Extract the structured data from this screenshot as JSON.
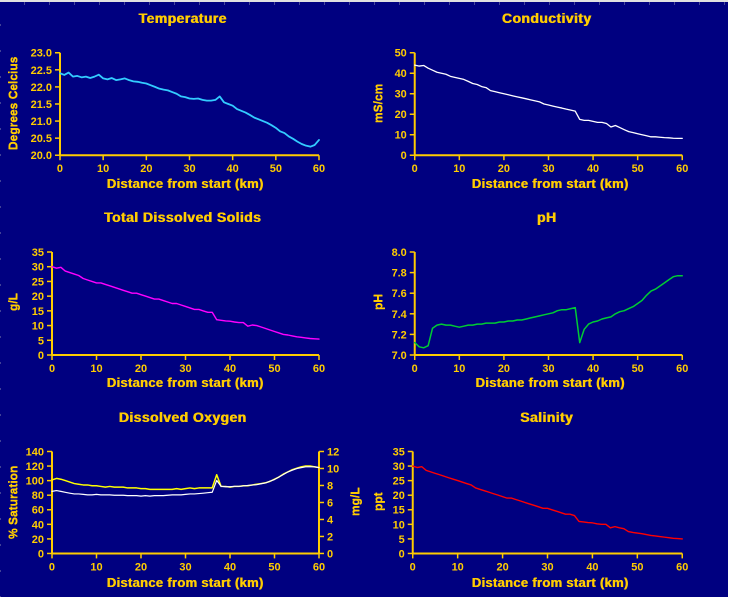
{
  "window": {
    "background": "#000080",
    "axis_color": "#FFCC00",
    "text_color": "#FFCC00"
  },
  "chart_data": [
    {
      "id": "temperature",
      "type": "line",
      "title": "Temperature",
      "xlabel": "Distance from start (km)",
      "ylabel": "Degrees Celcius",
      "xlim": [
        0,
        60
      ],
      "xticks": [
        "0",
        "10",
        "20",
        "30",
        "40",
        "50",
        "60"
      ],
      "ylim": [
        20,
        23
      ],
      "yticks": [
        "20.0",
        "20.5",
        "21.0",
        "21.5",
        "22.0",
        "22.5",
        "23.0"
      ],
      "grid": false,
      "legend": "none",
      "x_start": 0,
      "x_step": 1,
      "series": [
        {
          "name": "Temperature",
          "color": "#33CCFF",
          "width": 1.8,
          "values": [
            22.4,
            22.35,
            22.42,
            22.3,
            22.32,
            22.28,
            22.3,
            22.26,
            22.3,
            22.36,
            22.25,
            22.22,
            22.26,
            22.2,
            22.22,
            22.25,
            22.2,
            22.16,
            22.15,
            22.12,
            22.1,
            22.05,
            22.0,
            21.95,
            21.92,
            21.9,
            21.85,
            21.8,
            21.72,
            21.7,
            21.66,
            21.65,
            21.66,
            21.62,
            21.6,
            21.6,
            21.62,
            21.72,
            21.55,
            21.5,
            21.45,
            21.35,
            21.3,
            21.25,
            21.18,
            21.1,
            21.05,
            21.0,
            20.95,
            20.88,
            20.8,
            20.7,
            20.65,
            20.55,
            20.48,
            20.4,
            20.33,
            20.28,
            20.25,
            20.3,
            20.45
          ]
        }
      ]
    },
    {
      "id": "conductivity",
      "type": "line",
      "title": "Conductivity",
      "xlabel": "Distance from start (km)",
      "ylabel": "mS/cm",
      "xlim": [
        0,
        60
      ],
      "xticks": [
        "0",
        "10",
        "20",
        "30",
        "40",
        "50",
        "60"
      ],
      "ylim": [
        0,
        50
      ],
      "yticks": [
        "0",
        "10",
        "20",
        "30",
        "40",
        "50"
      ],
      "grid": false,
      "legend": "none",
      "x_start": 0,
      "x_step": 1,
      "series": [
        {
          "name": "Conductivity",
          "color": "#FFFFFF",
          "width": 1.3,
          "values": [
            44,
            43.5,
            43.8,
            42.5,
            41.5,
            40.5,
            40,
            39.5,
            38.5,
            38,
            37.5,
            37,
            36,
            35,
            34.5,
            33.5,
            33,
            31.5,
            31,
            30.5,
            30,
            29.5,
            29,
            28.5,
            28,
            27.5,
            27,
            26.5,
            26,
            25,
            24.5,
            24,
            23.5,
            23,
            22.5,
            22,
            21.5,
            17.5,
            17,
            17,
            16.5,
            16,
            16,
            15.5,
            13.8,
            14.5,
            13.5,
            12.5,
            11.5,
            11,
            10.5,
            10,
            9.5,
            9,
            9,
            8.8,
            8.6,
            8.5,
            8.3,
            8.2,
            8.2
          ]
        }
      ]
    },
    {
      "id": "total-dissolved-solids",
      "type": "line",
      "title": "Total Dissolved Solids",
      "xlabel": "Distance from start (km)",
      "ylabel": "g/L",
      "xlim": [
        0,
        60
      ],
      "xticks": [
        "0",
        "10",
        "20",
        "30",
        "40",
        "50",
        "60"
      ],
      "ylim": [
        0,
        35
      ],
      "yticks": [
        "0",
        "5",
        "10",
        "15",
        "20",
        "25",
        "30",
        "35"
      ],
      "grid": false,
      "legend": "none",
      "x_start": 0,
      "x_step": 1,
      "series": [
        {
          "name": "Total Dissolved Solids",
          "color": "#FF00FF",
          "width": 1.4,
          "values": [
            30,
            29.5,
            29.8,
            28.5,
            28,
            27.5,
            27,
            26,
            25.5,
            25,
            24.5,
            24.5,
            24,
            23.5,
            23,
            22.5,
            22,
            21.5,
            21,
            21,
            20.5,
            20,
            19.5,
            19,
            19,
            18.5,
            18,
            17.5,
            17.5,
            17,
            16.5,
            16,
            15.5,
            15.5,
            15,
            14.5,
            14.5,
            12,
            11.8,
            11.6,
            11.5,
            11.2,
            11,
            11,
            9.8,
            10.2,
            10,
            9.5,
            9,
            8.5,
            8,
            7.5,
            7,
            6.8,
            6.5,
            6.2,
            6,
            5.8,
            5.6,
            5.5,
            5.4
          ]
        }
      ]
    },
    {
      "id": "ph",
      "type": "line",
      "title": "pH",
      "xlabel": "Distane from start (km)",
      "ylabel": "pH",
      "xlim": [
        0,
        60
      ],
      "xticks": [
        "0",
        "10",
        "20",
        "30",
        "40",
        "50",
        "60"
      ],
      "ylim": [
        7.0,
        8.0
      ],
      "yticks": [
        "7.0",
        "7.2",
        "7.4",
        "7.6",
        "7.8",
        "8.0"
      ],
      "grid": false,
      "legend": "none",
      "x_start": 0,
      "x_step": 1,
      "series": [
        {
          "name": "pH",
          "color": "#00CC33",
          "width": 1.5,
          "values": [
            7.12,
            7.08,
            7.07,
            7.09,
            7.26,
            7.29,
            7.3,
            7.29,
            7.29,
            7.28,
            7.27,
            7.28,
            7.29,
            7.29,
            7.3,
            7.3,
            7.31,
            7.31,
            7.31,
            7.32,
            7.32,
            7.33,
            7.33,
            7.34,
            7.34,
            7.35,
            7.36,
            7.37,
            7.38,
            7.39,
            7.4,
            7.41,
            7.43,
            7.44,
            7.44,
            7.45,
            7.46,
            7.12,
            7.25,
            7.3,
            7.32,
            7.33,
            7.35,
            7.36,
            7.37,
            7.4,
            7.42,
            7.43,
            7.45,
            7.47,
            7.5,
            7.53,
            7.58,
            7.62,
            7.64,
            7.67,
            7.7,
            7.73,
            7.76,
            7.77,
            7.77
          ]
        }
      ]
    },
    {
      "id": "dissolved-oxygen",
      "type": "line",
      "title": "Dissolved Oxygen",
      "xlabel": "Distance from start (km)",
      "ylabel": "% Saturation",
      "y2label": "mg/L",
      "xlim": [
        0,
        60
      ],
      "xticks": [
        "0",
        "10",
        "20",
        "30",
        "40",
        "50",
        "60"
      ],
      "ylim": [
        0,
        140
      ],
      "yticks": [
        "0",
        "20",
        "40",
        "60",
        "80",
        "100",
        "120",
        "140"
      ],
      "y2lim": [
        0,
        12
      ],
      "y2ticks": [
        "0",
        "2",
        "4",
        "6",
        "8",
        "10",
        "12"
      ],
      "grid": false,
      "legend": "none",
      "x_start": 0,
      "x_step": 1,
      "series": [
        {
          "name": "% Saturation",
          "axis": "left",
          "color": "#FFFF00",
          "width": 1.5,
          "values": [
            101,
            103,
            102,
            100,
            98,
            96,
            95,
            94,
            94,
            93,
            93,
            92,
            91,
            92,
            91,
            91,
            91,
            90,
            90,
            90,
            89,
            89,
            88,
            88,
            88,
            88,
            88,
            88,
            89,
            88,
            89,
            90,
            89,
            90,
            90,
            90,
            90,
            108,
            92,
            92,
            91,
            92,
            92,
            93,
            93,
            94,
            95,
            96,
            97,
            99,
            102,
            105,
            109,
            112,
            115,
            117,
            119,
            120,
            120,
            119,
            118
          ]
        },
        {
          "name": "mg/L",
          "axis": "right",
          "color": "#FFFFFF",
          "width": 1.2,
          "values": [
            7.3,
            7.4,
            7.3,
            7.2,
            7.1,
            7.0,
            7.0,
            6.95,
            6.9,
            6.9,
            6.95,
            6.9,
            6.9,
            6.9,
            6.85,
            6.85,
            6.85,
            6.8,
            6.8,
            6.8,
            6.75,
            6.8,
            6.75,
            6.8,
            6.8,
            6.8,
            6.85,
            6.9,
            6.9,
            6.9,
            6.95,
            7.0,
            7.0,
            7.05,
            7.1,
            7.15,
            7.2,
            8.6,
            7.9,
            7.85,
            7.85,
            7.9,
            7.9,
            7.95,
            8.0,
            8.05,
            8.1,
            8.2,
            8.3,
            8.5,
            8.7,
            9.0,
            9.3,
            9.6,
            9.8,
            10.0,
            10.1,
            10.2,
            10.2,
            10.2,
            10.1
          ]
        }
      ]
    },
    {
      "id": "salinity",
      "type": "line",
      "title": "Salinity",
      "xlabel": "Distance from start (km)",
      "ylabel": "ppt",
      "xlim": [
        0,
        60
      ],
      "xticks": [
        "0",
        "10",
        "20",
        "30",
        "40",
        "50",
        "60"
      ],
      "ylim": [
        0,
        35
      ],
      "yticks": [
        "0",
        "5",
        "10",
        "15",
        "20",
        "25",
        "30",
        "35"
      ],
      "grid": false,
      "legend": "none",
      "x_start": 0,
      "x_step": 1,
      "series": [
        {
          "name": "Salinity",
          "color": "#FF0000",
          "width": 1.4,
          "values": [
            30,
            29.5,
            29.8,
            28.5,
            28,
            27.5,
            27,
            26.5,
            26,
            25.5,
            25,
            24.5,
            24,
            23.5,
            22.5,
            22,
            21.5,
            21,
            20.5,
            20,
            19.5,
            19,
            19,
            18.5,
            18,
            17.5,
            17,
            16.5,
            16,
            15.5,
            15.5,
            15,
            14.5,
            14,
            13.5,
            13.5,
            13,
            11,
            10.8,
            10.6,
            10.5,
            10.2,
            10,
            10,
            8.8,
            9.2,
            8.8,
            8.5,
            7.5,
            7.2,
            7,
            6.8,
            6.5,
            6.2,
            6,
            5.8,
            5.6,
            5.4,
            5.2,
            5.1,
            5
          ]
        }
      ]
    }
  ]
}
